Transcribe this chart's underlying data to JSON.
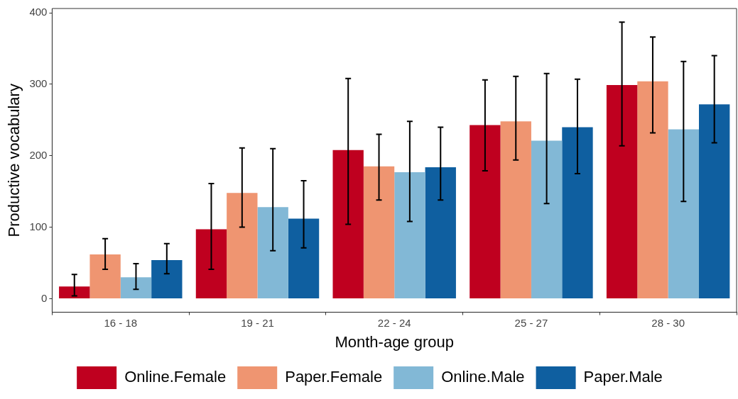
{
  "chart_data": {
    "type": "bar",
    "xlabel": "Month-age group",
    "ylabel": "Productive vocabulary",
    "categories": [
      "16 - 18",
      "19 - 21",
      "22 - 24",
      "25 - 27",
      "28 - 30"
    ],
    "series": [
      {
        "name": "Online.Female",
        "color": "#bf001f",
        "values": [
          17,
          97,
          208,
          243,
          299
        ],
        "errors": [
          [
            4,
            34
          ],
          [
            41,
            161
          ],
          [
            104,
            308
          ],
          [
            179,
            306
          ],
          [
            214,
            387
          ]
        ]
      },
      {
        "name": "Paper.Female",
        "color": "#ef9571",
        "values": [
          62,
          148,
          185,
          248,
          304
        ],
        "errors": [
          [
            41,
            84
          ],
          [
            100,
            211
          ],
          [
            138,
            230
          ],
          [
            194,
            311
          ],
          [
            232,
            366
          ]
        ]
      },
      {
        "name": "Online.Male",
        "color": "#82b8d6",
        "values": [
          30,
          128,
          177,
          221,
          237
        ],
        "errors": [
          [
            13,
            49
          ],
          [
            67,
            210
          ],
          [
            108,
            248
          ],
          [
            133,
            315
          ],
          [
            136,
            332
          ]
        ]
      },
      {
        "name": "Paper.Male",
        "color": "#0f5fa0",
        "values": [
          54,
          112,
          184,
          240,
          272
        ],
        "errors": [
          [
            35,
            77
          ],
          [
            71,
            165
          ],
          [
            138,
            240
          ],
          [
            175,
            307
          ],
          [
            218,
            340
          ]
        ]
      }
    ],
    "ylim": [
      -19,
      406
    ],
    "yticks": [
      0,
      100,
      200,
      300,
      400
    ],
    "grid": false,
    "legend": "bottom"
  }
}
